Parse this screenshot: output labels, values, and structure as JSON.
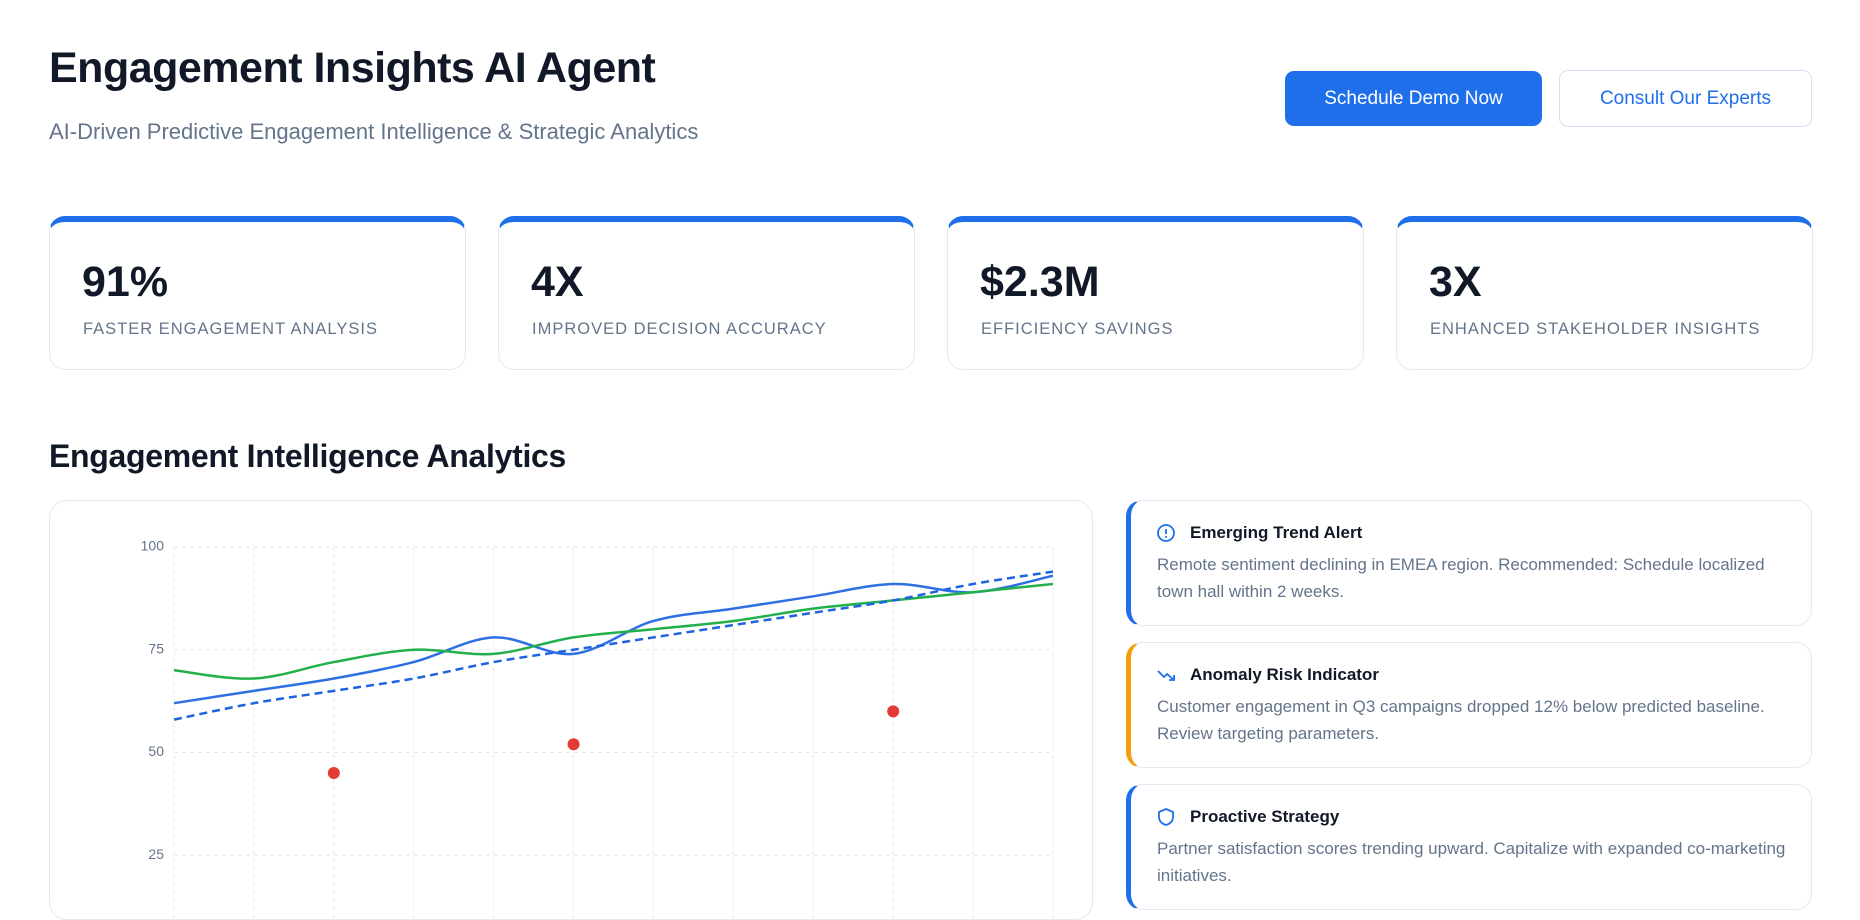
{
  "header": {
    "title": "Engagement Insights AI Agent",
    "subtitle": "AI-Driven Predictive Engagement Intelligence & Strategic Analytics",
    "buttons": [
      "Schedule Demo Now",
      "Consult Our Experts"
    ]
  },
  "stats": [
    {
      "value": "91%",
      "label": "FASTER ENGAGEMENT ANALYSIS"
    },
    {
      "value": "4X",
      "label": "IMPROVED DECISION ACCURACY"
    },
    {
      "value": "$2.3M",
      "label": "EFFICIENCY SAVINGS"
    },
    {
      "value": "3X",
      "label": "ENHANCED STAKEHOLDER INSIGHTS"
    }
  ],
  "section_title": "Engagement Intelligence Analytics",
  "chart_data": {
    "type": "line",
    "categories": [
      null,
      null,
      null,
      null,
      null,
      null,
      null,
      null,
      null,
      null,
      null,
      null
    ],
    "ylim": [
      0,
      100
    ],
    "yticks": [
      25,
      50,
      75,
      100
    ],
    "grid": true,
    "series": [
      {
        "color": "#2f6fe4",
        "style": "solid",
        "values": [
          62,
          65,
          68,
          72,
          78,
          74,
          82,
          85,
          88,
          91,
          89,
          93
        ]
      },
      {
        "color": "#22b04b",
        "style": "solid",
        "values": [
          70,
          68,
          72,
          75,
          74,
          78,
          80,
          82,
          85,
          87,
          89,
          91
        ]
      },
      {
        "color": "#1f63e0",
        "style": "dashed",
        "values": [
          58,
          62,
          65,
          68,
          72,
          75,
          78,
          81,
          84,
          87,
          91,
          94
        ]
      },
      {
        "color": "#e53935",
        "style": "points",
        "values": [
          null,
          null,
          45,
          null,
          null,
          52,
          null,
          null,
          null,
          60,
          null,
          null
        ]
      }
    ]
  },
  "insights": [
    {
      "title": "Emerging Trend Alert",
      "text": "Remote sentiment declining in EMEA region. Recommended: Schedule localized town hall within 2 weeks.",
      "color": "#1f6feb"
    },
    {
      "title": "Anomaly Risk Indicator",
      "text": "Customer engagement in Q3 campaigns dropped 12% below predicted baseline. Review targeting parameters.",
      "color": "#f59e0b"
    },
    {
      "title": "Proactive Strategy",
      "text": "Partner satisfaction scores trending upward. Capitalize with expanded co-marketing initiatives.",
      "color": "#1f6feb"
    }
  ]
}
